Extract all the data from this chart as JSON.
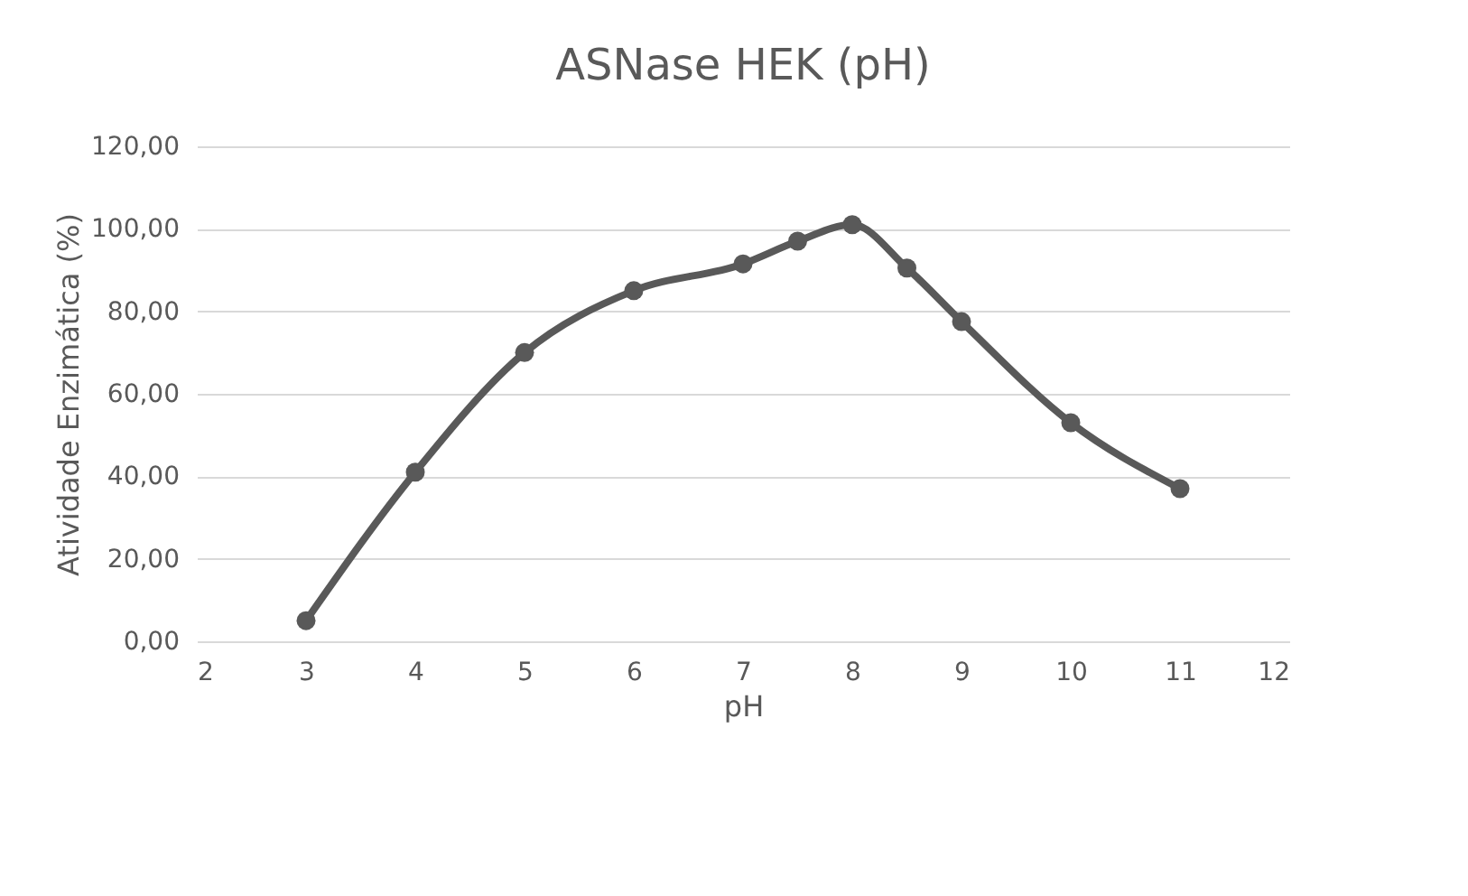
{
  "chart_data": {
    "type": "line",
    "title": "ASNase HEK (pH)",
    "xlabel": "pH",
    "ylabel": "Atividade Enzimática (%)",
    "x": [
      3,
      4,
      5,
      6,
      7,
      7.5,
      8,
      8.5,
      9,
      10,
      11
    ],
    "series": [
      {
        "color": "#595959",
        "values": [
          5,
          41,
          70,
          85,
          91.5,
          97,
          101,
          90.5,
          77.5,
          53,
          37
        ]
      }
    ],
    "xlim": [
      2,
      12
    ],
    "xticks": [
      2,
      3,
      4,
      5,
      6,
      7,
      8,
      9,
      10,
      11,
      12
    ],
    "ylim": [
      0,
      120
    ],
    "yticks": [
      {
        "value": 0,
        "label": "0,00"
      },
      {
        "value": 20,
        "label": "20,00"
      },
      {
        "value": 40,
        "label": "40,00"
      },
      {
        "value": 60,
        "label": "60,00"
      },
      {
        "value": 80,
        "label": "80,00"
      },
      {
        "value": 100,
        "label": "100,00"
      },
      {
        "value": 120,
        "label": "120,00"
      }
    ],
    "grid": "y",
    "marker": "circle",
    "line_style": "solid"
  }
}
